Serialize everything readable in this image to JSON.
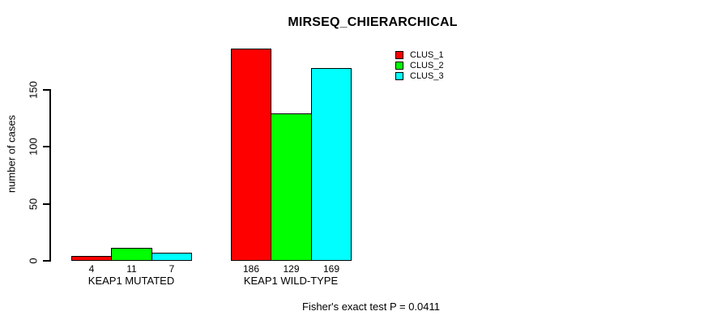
{
  "chart_data": {
    "type": "bar",
    "title": "MIRSEQ_CHIERARCHICAL",
    "categories": [
      "KEAP1 MUTATED",
      "KEAP1 WILD-TYPE"
    ],
    "series": [
      {
        "name": "CLUS_1",
        "color": "#ff0000",
        "values": [
          4,
          186
        ]
      },
      {
        "name": "CLUS_2",
        "color": "#00ff00",
        "values": [
          11,
          129
        ]
      },
      {
        "name": "CLUS_3",
        "color": "#00ffff",
        "values": [
          7,
          169
        ]
      }
    ],
    "ylabel": "number of cases",
    "xlabel": "",
    "yticks": [
      0,
      50,
      100,
      150
    ],
    "ylim": [
      0,
      190
    ],
    "grid": false,
    "legend_position": "top-right",
    "bar_value_labels": true,
    "annotation": "Fisher's exact test P = 0.0411",
    "colors": {
      "axis": "#000000",
      "text": "#000000",
      "background": "#ffffff"
    }
  }
}
